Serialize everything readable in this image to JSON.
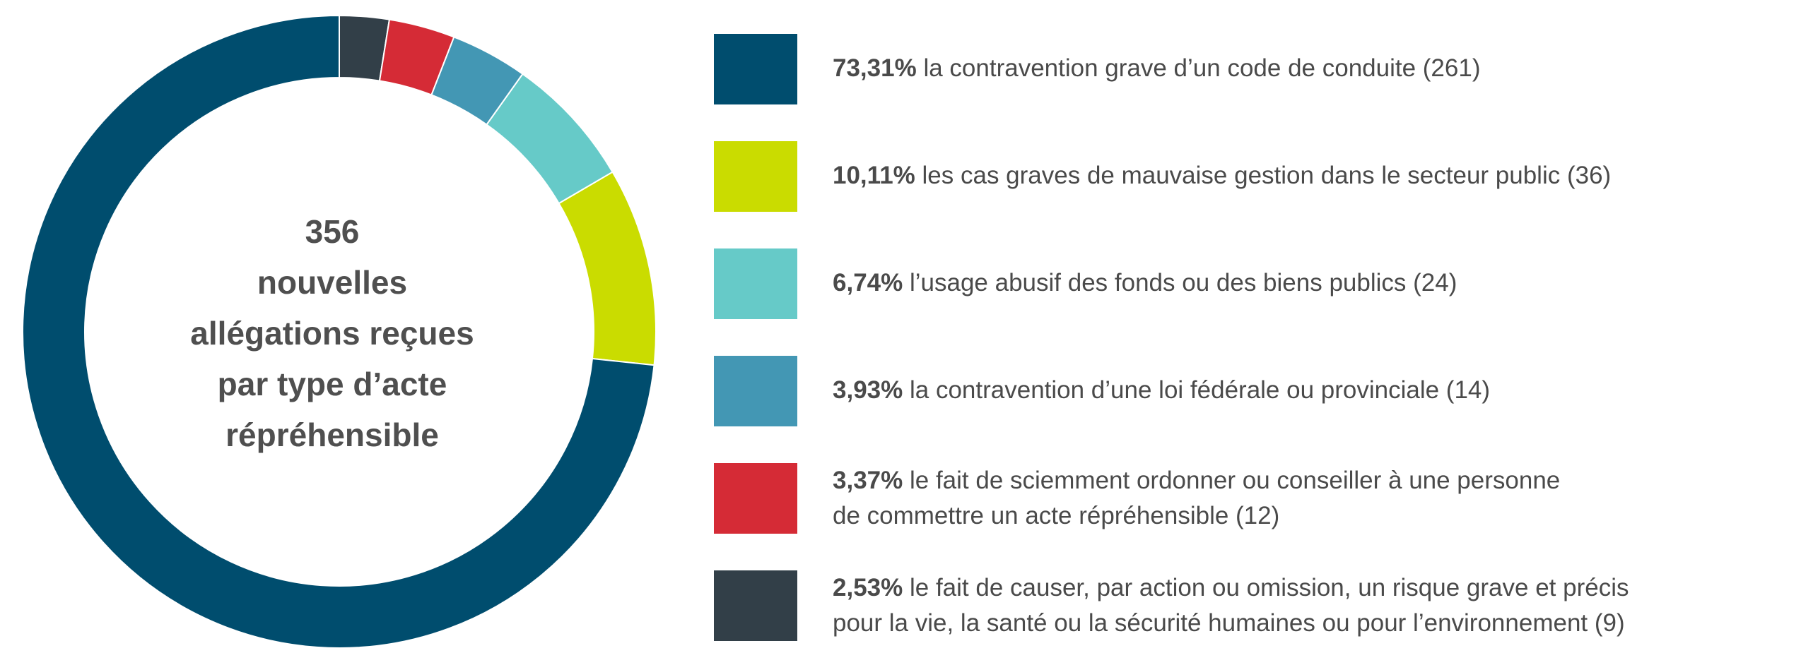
{
  "chart_data": {
    "type": "pie",
    "style": "donut",
    "total": "356",
    "center_lines": [
      "356",
      "nouvelles",
      "allégations reçues",
      "par type d’acte",
      "répréhensible"
    ],
    "slices": [
      {
        "percent_label": "73,31%",
        "value": 73.31,
        "count_label": "(261)",
        "count": 261,
        "label": "la contravention grave d’un code de conduite",
        "lines": [
          "la contravention grave d’un code de conduite (261)"
        ],
        "color": "#004d6e"
      },
      {
        "percent_label": "10,11%",
        "value": 10.11,
        "count_label": "(36)",
        "count": 36,
        "label": "les cas graves de mauvaise gestion dans le secteur public",
        "lines": [
          "les cas graves de mauvaise gestion dans le secteur public (36)"
        ],
        "color": "#cadc00"
      },
      {
        "percent_label": "6,74%",
        "value": 6.74,
        "count_label": "(24)",
        "count": 24,
        "label": "l’usage abusif des fonds ou des biens publics",
        "lines": [
          "l’usage abusif des fonds ou des biens publics (24)"
        ],
        "color": "#66cac8"
      },
      {
        "percent_label": "3,93%",
        "value": 3.93,
        "count_label": "(14)",
        "count": 14,
        "label": "la contravention d’une loi fédérale ou provinciale",
        "lines": [
          "la contravention d’une loi fédérale ou provinciale (14)"
        ],
        "color": "#4397b4"
      },
      {
        "percent_label": "3,37%",
        "value": 3.37,
        "count_label": "(12)",
        "count": 12,
        "label": "le fait de sciemment ordonner ou conseiller à une personne de commettre un acte répréhensible",
        "lines": [
          "le fait de sciemment ordonner ou conseiller à une personne",
          "de commettre un acte répréhensible (12)"
        ],
        "color": "#d52b36"
      },
      {
        "percent_label": "2,53%",
        "value": 2.53,
        "count_label": "(9)",
        "count": 9,
        "label": "le fait de causer, par action ou omission, un risque grave et précis pour la vie, la santé ou la sécurité humaines ou pour l’environnement",
        "lines": [
          "le fait de causer, par action ou omission, un risque grave et précis",
          "pour la vie, la santé ou la sécurité humaines ou pour l’environnement (9)"
        ],
        "color": "#323f48"
      }
    ]
  }
}
